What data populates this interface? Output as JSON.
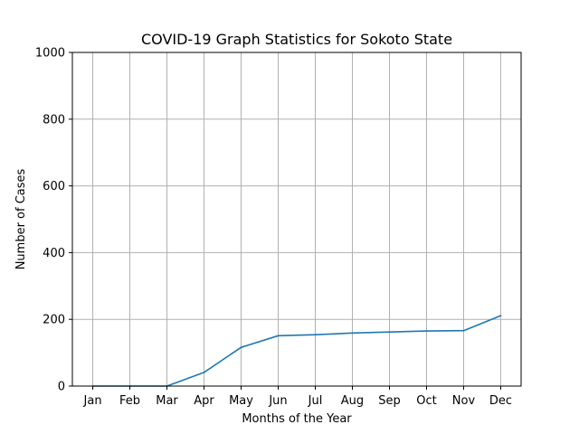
{
  "chart_data": {
    "type": "line",
    "title": "COVID-19 Graph Statistics for Sokoto State",
    "xlabel": "Months of the Year",
    "ylabel": "Number of Cases",
    "categories": [
      "Jan",
      "Feb",
      "Mar",
      "Apr",
      "May",
      "Jun",
      "Jul",
      "Aug",
      "Sep",
      "Oct",
      "Nov",
      "Dec"
    ],
    "series": [
      {
        "values": [
          0,
          0,
          0,
          41,
          116,
          151,
          154,
          159,
          162,
          165,
          166,
          211
        ]
      }
    ],
    "ylim": [
      0,
      1000
    ],
    "yticks": [
      0,
      200,
      400,
      600,
      800,
      1000
    ],
    "grid": true,
    "line_color": "#1f77b4",
    "grid_color": "#b0b0b0"
  }
}
